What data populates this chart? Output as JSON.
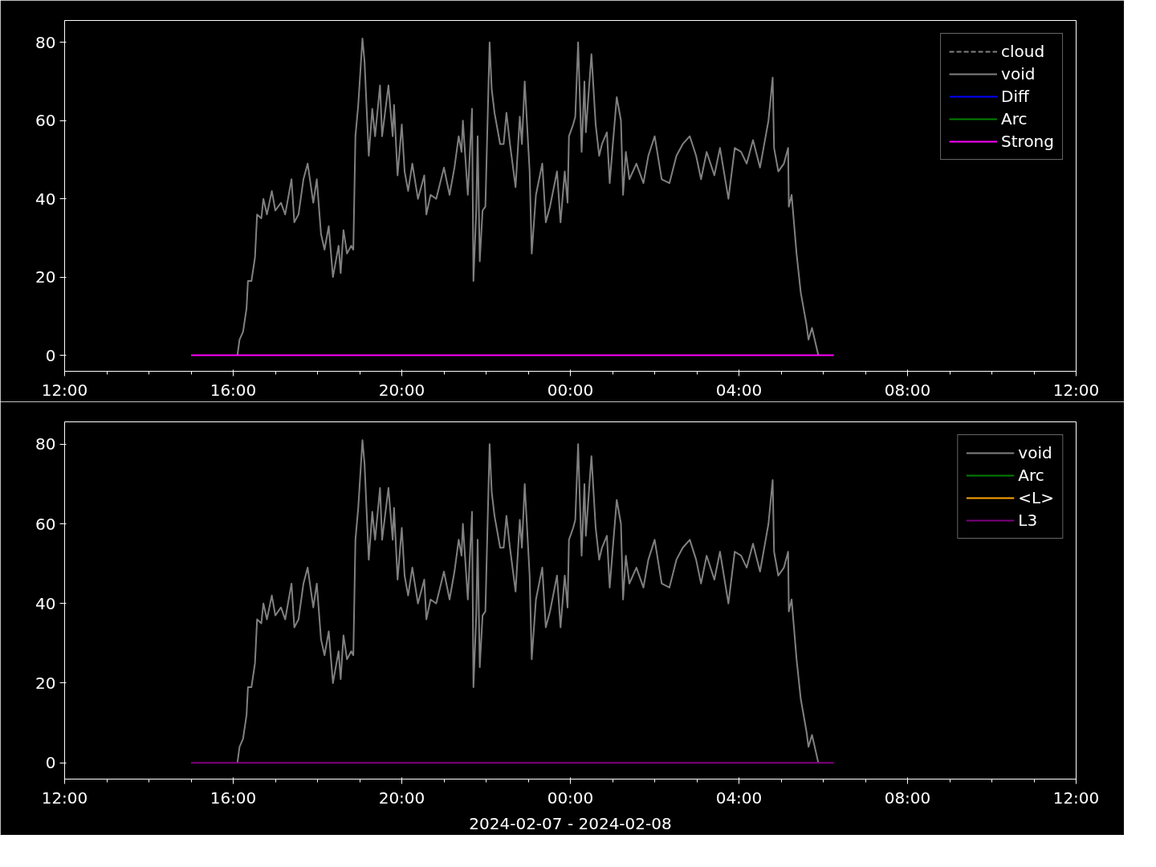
{
  "chart_data": [
    {
      "type": "line",
      "ylim": [
        -4.1,
        85.6
      ],
      "yticks": [
        0,
        20,
        40,
        60,
        80
      ],
      "xlim": [
        "2024-02-07T12:00",
        "2024-02-08T12:00"
      ],
      "xticks": [
        {
          "value": "2024-02-07T12:00",
          "label": "12:00"
        },
        {
          "value": "2024-02-07T16:00",
          "label": "16:00"
        },
        {
          "value": "2024-02-07T20:00",
          "label": "20:00"
        },
        {
          "value": "2024-02-08T00:00",
          "label": "00:00"
        },
        {
          "value": "2024-02-08T04:00",
          "label": "04:00"
        },
        {
          "value": "2024-02-08T08:00",
          "label": "08:00"
        },
        {
          "value": "2024-02-08T12:00",
          "label": "12:00"
        },
        {
          "value": "2024-02-07T13:00",
          "label": null
        },
        {
          "value": "2024-02-07T14:00",
          "label": null
        },
        {
          "value": "2024-02-07T15:00",
          "label": null
        },
        {
          "value": "2024-02-07T17:00",
          "label": null
        },
        {
          "value": "2024-02-07T18:00",
          "label": null
        },
        {
          "value": "2024-02-07T19:00",
          "label": null
        },
        {
          "value": "2024-02-07T21:00",
          "label": null
        },
        {
          "value": "2024-02-07T22:00",
          "label": null
        },
        {
          "value": "2024-02-07T23:00",
          "label": null
        },
        {
          "value": "2024-02-08T01:00",
          "label": null
        },
        {
          "value": "2024-02-08T02:00",
          "label": null
        },
        {
          "value": "2024-02-08T03:00",
          "label": null
        },
        {
          "value": "2024-02-08T05:00",
          "label": null
        },
        {
          "value": "2024-02-08T06:00",
          "label": null
        },
        {
          "value": "2024-02-08T07:00",
          "label": null
        },
        {
          "value": "2024-02-08T09:00",
          "label": null
        },
        {
          "value": "2024-02-08T10:00",
          "label": null
        },
        {
          "value": "2024-02-08T11:00",
          "label": null
        }
      ],
      "grid": false,
      "legend": "top right",
      "series": [
        {
          "name": "cloud",
          "color": "#808080",
          "line_style": "dashed"
        },
        {
          "name": "void",
          "color": "#808080",
          "x": [
            "2024-02-07T16:06",
            "2024-02-07T16:09",
            "2024-02-07T16:14",
            "2024-02-07T16:19",
            "2024-02-07T16:21",
            "2024-02-07T16:26",
            "2024-02-07T16:31",
            "2024-02-07T16:34",
            "2024-02-07T16:40",
            "2024-02-07T16:43",
            "2024-02-07T16:48",
            "2024-02-07T16:55",
            "2024-02-07T17:00",
            "2024-02-07T17:08",
            "2024-02-07T17:14",
            "2024-02-07T17:23",
            "2024-02-07T17:27",
            "2024-02-07T17:33",
            "2024-02-07T17:40",
            "2024-02-07T17:46",
            "2024-02-07T17:54",
            "2024-02-07T17:59",
            "2024-02-07T18:05",
            "2024-02-07T18:10",
            "2024-02-07T18:16",
            "2024-02-07T18:22",
            "2024-02-07T18:30",
            "2024-02-07T18:33",
            "2024-02-07T18:37",
            "2024-02-07T18:42",
            "2024-02-07T18:48",
            "2024-02-07T18:51",
            "2024-02-07T18:54",
            "2024-02-07T18:58",
            "2024-02-07T19:04",
            "2024-02-07T19:07",
            "2024-02-07T19:13",
            "2024-02-07T19:18",
            "2024-02-07T19:22",
            "2024-02-07T19:29",
            "2024-02-07T19:32",
            "2024-02-07T19:41",
            "2024-02-07T19:47",
            "2024-02-07T19:49",
            "2024-02-07T19:54",
            "2024-02-07T20:00",
            "2024-02-07T20:04",
            "2024-02-07T20:09",
            "2024-02-07T20:15",
            "2024-02-07T20:23",
            "2024-02-07T20:32",
            "2024-02-07T20:35",
            "2024-02-07T20:41",
            "2024-02-07T20:49",
            "2024-02-07T21:00",
            "2024-02-07T21:08",
            "2024-02-07T21:15",
            "2024-02-07T21:21",
            "2024-02-07T21:25",
            "2024-02-07T21:27",
            "2024-02-07T21:34",
            "2024-02-07T21:40",
            "2024-02-07T21:42",
            "2024-02-07T21:46",
            "2024-02-07T21:48",
            "2024-02-07T21:51",
            "2024-02-07T21:55",
            "2024-02-07T21:59",
            "2024-02-07T22:05",
            "2024-02-07T22:08",
            "2024-02-07T22:12",
            "2024-02-07T22:20",
            "2024-02-07T22:25",
            "2024-02-07T22:29",
            "2024-02-07T22:34",
            "2024-02-07T22:42",
            "2024-02-07T22:48",
            "2024-02-07T22:51",
            "2024-02-07T22:55",
            "2024-02-07T23:02",
            "2024-02-07T23:05",
            "2024-02-07T23:11",
            "2024-02-07T23:20",
            "2024-02-07T23:25",
            "2024-02-07T23:31",
            "2024-02-07T23:41",
            "2024-02-07T23:46",
            "2024-02-07T23:52",
            "2024-02-07T23:56",
            "2024-02-07T23:58",
            "2024-02-08T00:04",
            "2024-02-08T00:07",
            "2024-02-08T00:11",
            "2024-02-08T00:16",
            "2024-02-08T00:20",
            "2024-02-08T00:22",
            "2024-02-08T00:30",
            "2024-02-08T00:36",
            "2024-02-08T00:41",
            "2024-02-08T00:45",
            "2024-02-08T00:52",
            "2024-02-08T00:56",
            "2024-02-08T01:00",
            "2024-02-08T01:06",
            "2024-02-08T01:12",
            "2024-02-08T01:15",
            "2024-02-08T01:19",
            "2024-02-08T01:24",
            "2024-02-08T01:34",
            "2024-02-08T01:44",
            "2024-02-08T01:51",
            "2024-02-08T02:00",
            "2024-02-08T02:10",
            "2024-02-08T02:21",
            "2024-02-08T02:31",
            "2024-02-08T02:40",
            "2024-02-08T02:50",
            "2024-02-08T02:59",
            "2024-02-08T03:06",
            "2024-02-08T03:14",
            "2024-02-08T03:25",
            "2024-02-08T03:33",
            "2024-02-08T03:45",
            "2024-02-08T03:54",
            "2024-02-08T04:03",
            "2024-02-08T04:11",
            "2024-02-08T04:20",
            "2024-02-08T04:30",
            "2024-02-08T04:37",
            "2024-02-08T04:42",
            "2024-02-08T04:48",
            "2024-02-08T04:50",
            "2024-02-08T04:56",
            "2024-02-08T05:04",
            "2024-02-08T05:10",
            "2024-02-08T05:11",
            "2024-02-08T05:15",
            "2024-02-08T05:22",
            "2024-02-08T05:28",
            "2024-02-08T05:36",
            "2024-02-08T05:39",
            "2024-02-08T05:44",
            "2024-02-08T05:53"
          ],
          "values": [
            0,
            4,
            6,
            12,
            19,
            19,
            25,
            36,
            35,
            40,
            36,
            42,
            37,
            39,
            36,
            45,
            34,
            36,
            45,
            49,
            39,
            45,
            31,
            27,
            33,
            20,
            28,
            21,
            32,
            26,
            28,
            27,
            56,
            64,
            81,
            75,
            51,
            63,
            56,
            69,
            56,
            69,
            56,
            64,
            46,
            59,
            47,
            42,
            49,
            40,
            46,
            36,
            41,
            40,
            48,
            41,
            48,
            56,
            52,
            60,
            41,
            63,
            19,
            37,
            56,
            24,
            37,
            38,
            80,
            68,
            62,
            54,
            54,
            62,
            54,
            43,
            61,
            54,
            70,
            47,
            26,
            41,
            49,
            34,
            38,
            47,
            34,
            47,
            39,
            56,
            59,
            61,
            80,
            52,
            70,
            57,
            77,
            59,
            51,
            54,
            57,
            44,
            53,
            66,
            60,
            41,
            52,
            45,
            49,
            44,
            51,
            56,
            45,
            44,
            51,
            54,
            56,
            51,
            45,
            52,
            46,
            53,
            40,
            53,
            52,
            49,
            55,
            48,
            55,
            60,
            71,
            53,
            47,
            49,
            53,
            38,
            41,
            26,
            16,
            8,
            4,
            7,
            0
          ]
        },
        {
          "name": "Diff",
          "color": "#0000ff"
        },
        {
          "name": "Arc",
          "color": "#008000"
        },
        {
          "name": "Strong",
          "color": "#ff00ff",
          "x": [
            "2024-02-07T15:00",
            "2024-02-08T06:15"
          ],
          "values": [
            0,
            0
          ]
        }
      ]
    },
    {
      "type": "line",
      "ylim": [
        -4.1,
        85.6
      ],
      "yticks": [
        0,
        20,
        40,
        60,
        80
      ],
      "xlim": [
        "2024-02-07T12:00",
        "2024-02-08T12:00"
      ],
      "xlabel": "2024-02-07 - 2024-02-08",
      "xticks": [
        {
          "value": "2024-02-07T12:00",
          "label": "12:00"
        },
        {
          "value": "2024-02-07T16:00",
          "label": "16:00"
        },
        {
          "value": "2024-02-07T20:00",
          "label": "20:00"
        },
        {
          "value": "2024-02-08T00:00",
          "label": "00:00"
        },
        {
          "value": "2024-02-08T04:00",
          "label": "04:00"
        },
        {
          "value": "2024-02-08T08:00",
          "label": "08:00"
        },
        {
          "value": "2024-02-08T12:00",
          "label": "12:00"
        },
        {
          "value": "2024-02-07T13:00",
          "label": null
        },
        {
          "value": "2024-02-07T14:00",
          "label": null
        },
        {
          "value": "2024-02-07T15:00",
          "label": null
        },
        {
          "value": "2024-02-07T17:00",
          "label": null
        },
        {
          "value": "2024-02-07T18:00",
          "label": null
        },
        {
          "value": "2024-02-07T19:00",
          "label": null
        },
        {
          "value": "2024-02-07T21:00",
          "label": null
        },
        {
          "value": "2024-02-07T22:00",
          "label": null
        },
        {
          "value": "2024-02-07T23:00",
          "label": null
        },
        {
          "value": "2024-02-08T01:00",
          "label": null
        },
        {
          "value": "2024-02-08T02:00",
          "label": null
        },
        {
          "value": "2024-02-08T03:00",
          "label": null
        },
        {
          "value": "2024-02-08T05:00",
          "label": null
        },
        {
          "value": "2024-02-08T06:00",
          "label": null
        },
        {
          "value": "2024-02-08T07:00",
          "label": null
        },
        {
          "value": "2024-02-08T09:00",
          "label": null
        },
        {
          "value": "2024-02-08T10:00",
          "label": null
        },
        {
          "value": "2024-02-08T11:00",
          "label": null
        }
      ],
      "grid": false,
      "legend": "top right",
      "series": [
        {
          "name": "void",
          "color": "#808080",
          "x": [
            "2024-02-07T16:06",
            "2024-02-07T16:09",
            "2024-02-07T16:14",
            "2024-02-07T16:19",
            "2024-02-07T16:21",
            "2024-02-07T16:26",
            "2024-02-07T16:31",
            "2024-02-07T16:34",
            "2024-02-07T16:40",
            "2024-02-07T16:43",
            "2024-02-07T16:48",
            "2024-02-07T16:55",
            "2024-02-07T17:00",
            "2024-02-07T17:08",
            "2024-02-07T17:14",
            "2024-02-07T17:23",
            "2024-02-07T17:27",
            "2024-02-07T17:33",
            "2024-02-07T17:40",
            "2024-02-07T17:46",
            "2024-02-07T17:54",
            "2024-02-07T17:59",
            "2024-02-07T18:05",
            "2024-02-07T18:10",
            "2024-02-07T18:16",
            "2024-02-07T18:22",
            "2024-02-07T18:30",
            "2024-02-07T18:33",
            "2024-02-07T18:37",
            "2024-02-07T18:42",
            "2024-02-07T18:48",
            "2024-02-07T18:51",
            "2024-02-07T18:54",
            "2024-02-07T18:58",
            "2024-02-07T19:04",
            "2024-02-07T19:07",
            "2024-02-07T19:13",
            "2024-02-07T19:18",
            "2024-02-07T19:22",
            "2024-02-07T19:29",
            "2024-02-07T19:32",
            "2024-02-07T19:41",
            "2024-02-07T19:47",
            "2024-02-07T19:49",
            "2024-02-07T19:54",
            "2024-02-07T20:00",
            "2024-02-07T20:04",
            "2024-02-07T20:09",
            "2024-02-07T20:15",
            "2024-02-07T20:23",
            "2024-02-07T20:32",
            "2024-02-07T20:35",
            "2024-02-07T20:41",
            "2024-02-07T20:49",
            "2024-02-07T21:00",
            "2024-02-07T21:08",
            "2024-02-07T21:15",
            "2024-02-07T21:21",
            "2024-02-07T21:25",
            "2024-02-07T21:27",
            "2024-02-07T21:34",
            "2024-02-07T21:40",
            "2024-02-07T21:42",
            "2024-02-07T21:46",
            "2024-02-07T21:48",
            "2024-02-07T21:51",
            "2024-02-07T21:55",
            "2024-02-07T21:59",
            "2024-02-07T22:05",
            "2024-02-07T22:08",
            "2024-02-07T22:12",
            "2024-02-07T22:20",
            "2024-02-07T22:25",
            "2024-02-07T22:29",
            "2024-02-07T22:34",
            "2024-02-07T22:42",
            "2024-02-07T22:48",
            "2024-02-07T22:51",
            "2024-02-07T22:55",
            "2024-02-07T23:02",
            "2024-02-07T23:05",
            "2024-02-07T23:11",
            "2024-02-07T23:20",
            "2024-02-07T23:25",
            "2024-02-07T23:31",
            "2024-02-07T23:41",
            "2024-02-07T23:46",
            "2024-02-07T23:52",
            "2024-02-07T23:56",
            "2024-02-07T23:58",
            "2024-02-08T00:04",
            "2024-02-08T00:07",
            "2024-02-08T00:11",
            "2024-02-08T00:16",
            "2024-02-08T00:20",
            "2024-02-08T00:22",
            "2024-02-08T00:30",
            "2024-02-08T00:36",
            "2024-02-08T00:41",
            "2024-02-08T00:45",
            "2024-02-08T00:52",
            "2024-02-08T00:56",
            "2024-02-08T01:00",
            "2024-02-08T01:06",
            "2024-02-08T01:12",
            "2024-02-08T01:15",
            "2024-02-08T01:19",
            "2024-02-08T01:24",
            "2024-02-08T01:34",
            "2024-02-08T01:44",
            "2024-02-08T01:51",
            "2024-02-08T02:00",
            "2024-02-08T02:10",
            "2024-02-08T02:21",
            "2024-02-08T02:31",
            "2024-02-08T02:40",
            "2024-02-08T02:50",
            "2024-02-08T02:59",
            "2024-02-08T03:06",
            "2024-02-08T03:14",
            "2024-02-08T03:25",
            "2024-02-08T03:33",
            "2024-02-08T03:45",
            "2024-02-08T03:54",
            "2024-02-08T04:03",
            "2024-02-08T04:11",
            "2024-02-08T04:20",
            "2024-02-08T04:30",
            "2024-02-08T04:37",
            "2024-02-08T04:42",
            "2024-02-08T04:48",
            "2024-02-08T04:50",
            "2024-02-08T04:56",
            "2024-02-08T05:04",
            "2024-02-08T05:10",
            "2024-02-08T05:11",
            "2024-02-08T05:15",
            "2024-02-08T05:22",
            "2024-02-08T05:28",
            "2024-02-08T05:36",
            "2024-02-08T05:39",
            "2024-02-08T05:44",
            "2024-02-08T05:53"
          ],
          "values": [
            0,
            4,
            6,
            12,
            19,
            19,
            25,
            36,
            35,
            40,
            36,
            42,
            37,
            39,
            36,
            45,
            34,
            36,
            45,
            49,
            39,
            45,
            31,
            27,
            33,
            20,
            28,
            21,
            32,
            26,
            28,
            27,
            56,
            64,
            81,
            75,
            51,
            63,
            56,
            69,
            56,
            69,
            56,
            64,
            46,
            59,
            47,
            42,
            49,
            40,
            46,
            36,
            41,
            40,
            48,
            41,
            48,
            56,
            52,
            60,
            41,
            63,
            19,
            37,
            56,
            24,
            37,
            38,
            80,
            68,
            62,
            54,
            54,
            62,
            54,
            43,
            61,
            54,
            70,
            47,
            26,
            41,
            49,
            34,
            38,
            47,
            34,
            47,
            39,
            56,
            59,
            61,
            80,
            52,
            70,
            57,
            77,
            59,
            51,
            54,
            57,
            44,
            53,
            66,
            60,
            41,
            52,
            45,
            49,
            44,
            51,
            56,
            45,
            44,
            51,
            54,
            56,
            51,
            45,
            52,
            46,
            53,
            40,
            53,
            52,
            49,
            55,
            48,
            55,
            60,
            71,
            53,
            47,
            49,
            53,
            38,
            41,
            26,
            16,
            8,
            4,
            7,
            0
          ]
        },
        {
          "name": "Arc",
          "color": "#008000"
        },
        {
          "name": "<L>",
          "color": "#ffa500"
        },
        {
          "name": "L3",
          "color": "#800080",
          "x": [
            "2024-02-07T15:00",
            "2024-02-08T06:15"
          ],
          "values": [
            0,
            0
          ]
        }
      ]
    }
  ]
}
